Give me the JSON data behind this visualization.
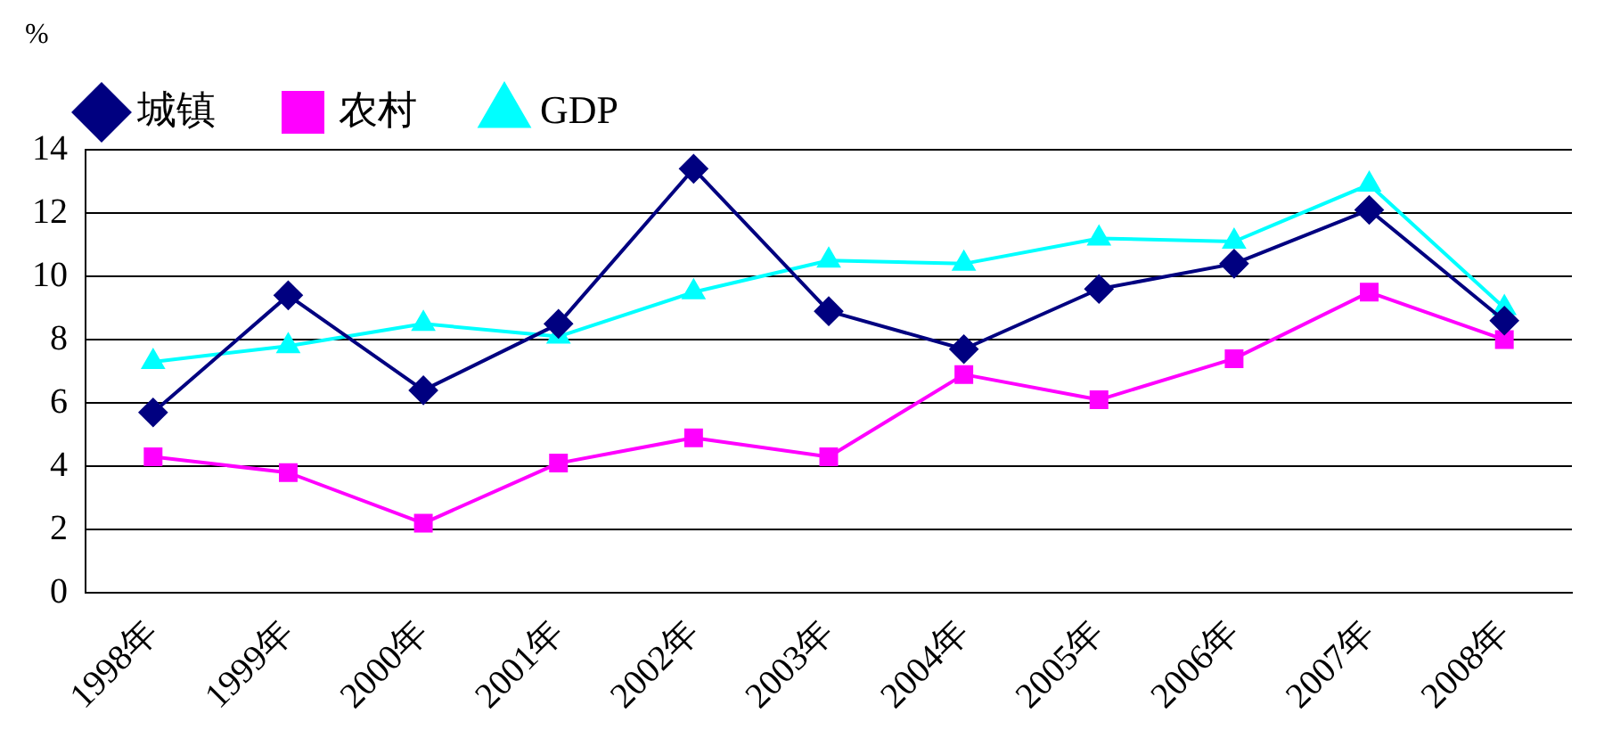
{
  "chart_data": {
    "type": "line",
    "ylabel": "%",
    "categories": [
      "1998年",
      "1999年",
      "2000年",
      "2001年",
      "2002年",
      "2003年",
      "2004年",
      "2005年",
      "2006年",
      "2007年",
      "2008年"
    ],
    "series": [
      {
        "name": "城镇",
        "color": "#000080",
        "marker": "diamond",
        "values": [
          5.7,
          9.4,
          6.4,
          8.5,
          13.4,
          8.9,
          7.7,
          9.6,
          10.4,
          12.1,
          8.6
        ]
      },
      {
        "name": "农村",
        "color": "#ff00ff",
        "marker": "square",
        "values": [
          4.3,
          3.8,
          2.2,
          4.1,
          4.9,
          4.3,
          6.9,
          6.1,
          7.4,
          9.5,
          8.0
        ]
      },
      {
        "name": "GDP",
        "color": "#00ffff",
        "marker": "triangle",
        "values": [
          7.3,
          7.8,
          8.5,
          8.1,
          9.5,
          10.5,
          10.4,
          11.2,
          11.1,
          12.9,
          9.0
        ]
      }
    ],
    "ylim": [
      0,
      14
    ],
    "yticks": [
      0,
      2,
      4,
      6,
      8,
      10,
      12,
      14
    ],
    "grid": "y",
    "legend": "top left"
  }
}
